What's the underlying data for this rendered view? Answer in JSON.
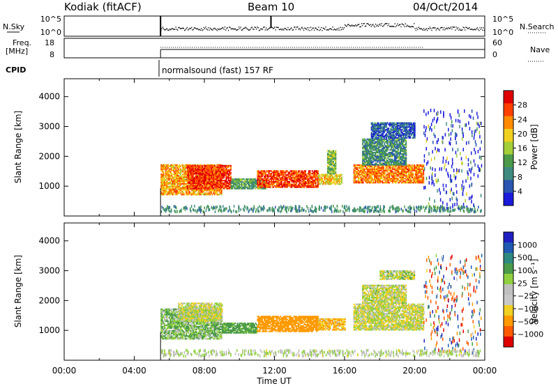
{
  "header": {
    "station": "Kodiak (fitACF)",
    "beam": "Beam 10",
    "date": "04/Oct/2014"
  },
  "top_panels": {
    "nsky_label": "N.Sky",
    "nsky_ticks": [
      "10^5",
      "10^0"
    ],
    "nsearch_label": "N.Search",
    "nsearch_ticks": [
      "10^5",
      "10^0"
    ],
    "freq_label_1": "Freq.",
    "freq_label_2": "[MHz]",
    "freq_ticks": [
      "18",
      "8"
    ],
    "nave_label": "Nave",
    "nave_ticks": [
      "60",
      "0"
    ],
    "cpid_label": "CPID",
    "cpid_value": "normalsound (fast) 157 RF"
  },
  "colors": {
    "power": [
      "#1a1adb",
      "#2a55b0",
      "#3f8a80",
      "#4a9a4a",
      "#a4cf3a",
      "#f0d020",
      "#ff8c00",
      "#ff4000",
      "#e00000"
    ],
    "velocity": [
      "#2020c0",
      "#1f5ab0",
      "#2e8a80",
      "#4a9a4a",
      "#90d040",
      "#bfbfbf",
      "#c8c8c8",
      "#f0d020",
      "#ff9a00",
      "#ff5a00",
      "#e00000"
    ]
  },
  "chart_data": [
    {
      "type": "heatmap",
      "name": "power",
      "x_ticks": [
        "00:00",
        "04:00",
        "08:00",
        "12:00",
        "16:00",
        "20:00",
        "00:00"
      ],
      "xlim_hours": [
        0,
        24
      ],
      "xlabel": "Time UT",
      "ylabel": "Slant Range [km]",
      "ylim": [
        0,
        4600
      ],
      "y_ticks": [
        "1000",
        "2000",
        "3000",
        "4000"
      ],
      "colorbar_label": "Power [dB]",
      "colorbar_ticks": [
        "28",
        "24",
        "20",
        "16",
        "12",
        "8",
        "4"
      ],
      "colorbar_range": [
        0,
        32
      ],
      "regions": [
        {
          "t0": 5.5,
          "t1": 9.0,
          "r0": 700,
          "r1": 1700,
          "level": 22
        },
        {
          "t0": 7.0,
          "t1": 9.5,
          "r0": 900,
          "r1": 1700,
          "level": 28
        },
        {
          "t0": 9.5,
          "t1": 11.5,
          "r0": 900,
          "r1": 1250,
          "level": 12
        },
        {
          "t0": 11.0,
          "t1": 14.5,
          "r0": 950,
          "r1": 1500,
          "level": 27
        },
        {
          "t0": 14.5,
          "t1": 15.8,
          "r0": 1050,
          "r1": 1400,
          "level": 20
        },
        {
          "t0": 15.0,
          "t1": 15.5,
          "r0": 1400,
          "r1": 2200,
          "level": 14
        },
        {
          "t0": 16.5,
          "t1": 20.5,
          "r0": 1100,
          "r1": 1700,
          "level": 24
        },
        {
          "t0": 17.0,
          "t1": 19.5,
          "r0": 1700,
          "r1": 2600,
          "level": 10
        },
        {
          "t0": 17.5,
          "t1": 20.0,
          "r0": 2600,
          "r1": 3100,
          "level": 6
        }
      ]
    },
    {
      "type": "heatmap",
      "name": "velocity",
      "x_ticks": [
        "00:00",
        "04:00",
        "08:00",
        "12:00",
        "16:00",
        "20:00",
        "00:00"
      ],
      "xlim_hours": [
        0,
        24
      ],
      "xlabel": "Time UT",
      "ylabel": "Slant Range [km]",
      "ylim": [
        0,
        4600
      ],
      "y_ticks": [
        "1000",
        "2000",
        "3000",
        "4000"
      ],
      "colorbar_label": "Velocity [m s⁻¹]",
      "colorbar_ticks": [
        "1000",
        "500",
        "100",
        "25",
        "−25",
        "−100",
        "−500",
        "−1000"
      ],
      "colorbar_range": [
        -1250,
        1250
      ],
      "regions": [
        {
          "t0": 5.5,
          "t1": 9.0,
          "r0": 700,
          "r1": 1700,
          "level": 50
        },
        {
          "t0": 6.5,
          "t1": 9.0,
          "r0": 1300,
          "r1": 1900,
          "level": 0
        },
        {
          "t0": 9.0,
          "t1": 11.0,
          "r0": 900,
          "r1": 1250,
          "level": 100
        },
        {
          "t0": 11.0,
          "t1": 14.5,
          "r0": 950,
          "r1": 1450,
          "level": -200
        },
        {
          "t0": 14.5,
          "t1": 16.0,
          "r0": 1000,
          "r1": 1400,
          "level": -60
        },
        {
          "t0": 16.5,
          "t1": 20.5,
          "r0": 1000,
          "r1": 1900,
          "level": 0
        },
        {
          "t0": 17.0,
          "t1": 19.5,
          "r0": 1900,
          "r1": 2500,
          "level": 5
        },
        {
          "t0": 18.0,
          "t1": 20.0,
          "r0": 2700,
          "r1": 3000,
          "level": 10
        }
      ]
    }
  ]
}
